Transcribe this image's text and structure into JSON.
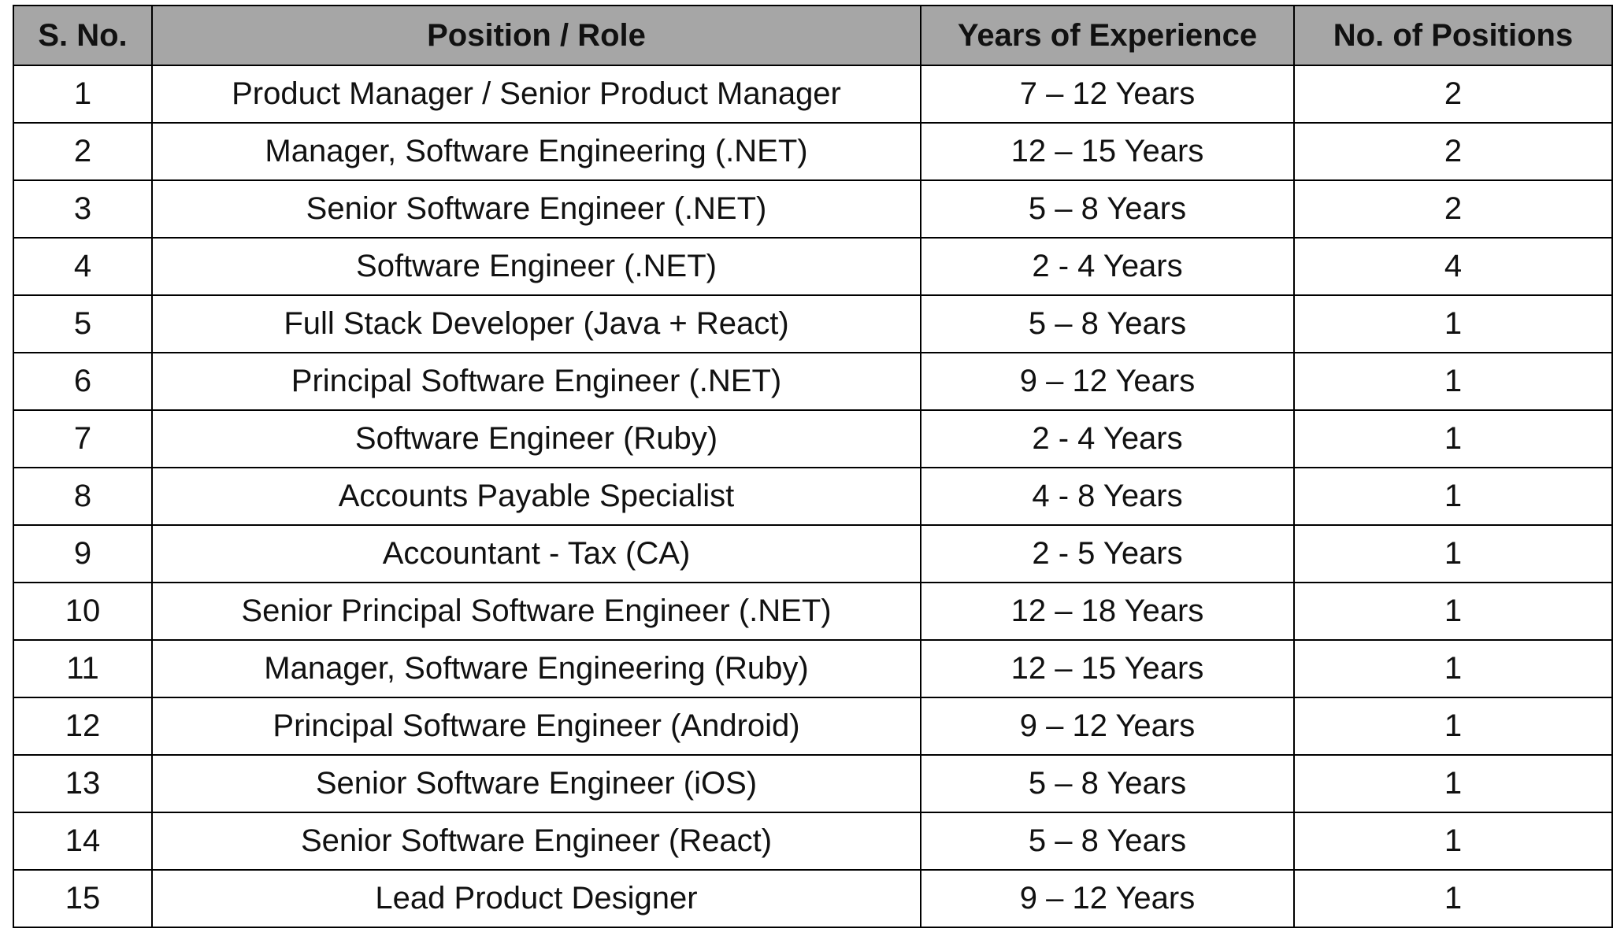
{
  "table": {
    "header": [
      "S. No.",
      "Position / Role",
      "Years of Experience",
      "No. of Positions"
    ],
    "rows": [
      [
        "1",
        "Product Manager / Senior Product Manager",
        "7 – 12 Years",
        "2"
      ],
      [
        "2",
        "Manager, Software Engineering (.NET)",
        "12 – 15 Years",
        "2"
      ],
      [
        "3",
        "Senior Software Engineer (.NET)",
        "5 – 8 Years",
        "2"
      ],
      [
        "4",
        "Software Engineer (.NET)",
        "2 - 4 Years",
        "4"
      ],
      [
        "5",
        "Full Stack Developer (Java + React)",
        "5 – 8 Years",
        "1"
      ],
      [
        "6",
        "Principal Software Engineer (.NET)",
        "9 – 12 Years",
        "1"
      ],
      [
        "7",
        "Software Engineer (Ruby)",
        "2 - 4 Years",
        "1"
      ],
      [
        "8",
        "Accounts Payable Specialist",
        "4 - 8 Years",
        "1"
      ],
      [
        "9",
        "Accountant - Tax (CA)",
        "2 - 5 Years",
        "1"
      ],
      [
        "10",
        "Senior Principal Software Engineer (.NET)",
        "12 – 18 Years",
        "1"
      ],
      [
        "11",
        "Manager, Software Engineering (Ruby)",
        "12 – 15 Years",
        "1"
      ],
      [
        "12",
        "Principal Software Engineer (Android)",
        "9 – 12 Years",
        "1"
      ],
      [
        "13",
        "Senior Software Engineer (iOS)",
        "5 – 8 Years",
        "1"
      ],
      [
        "14",
        "Senior Software Engineer (React)",
        "5 – 8 Years",
        "1"
      ],
      [
        "15",
        "Lead Product Designer",
        "9 – 12 Years",
        "1"
      ]
    ]
  }
}
